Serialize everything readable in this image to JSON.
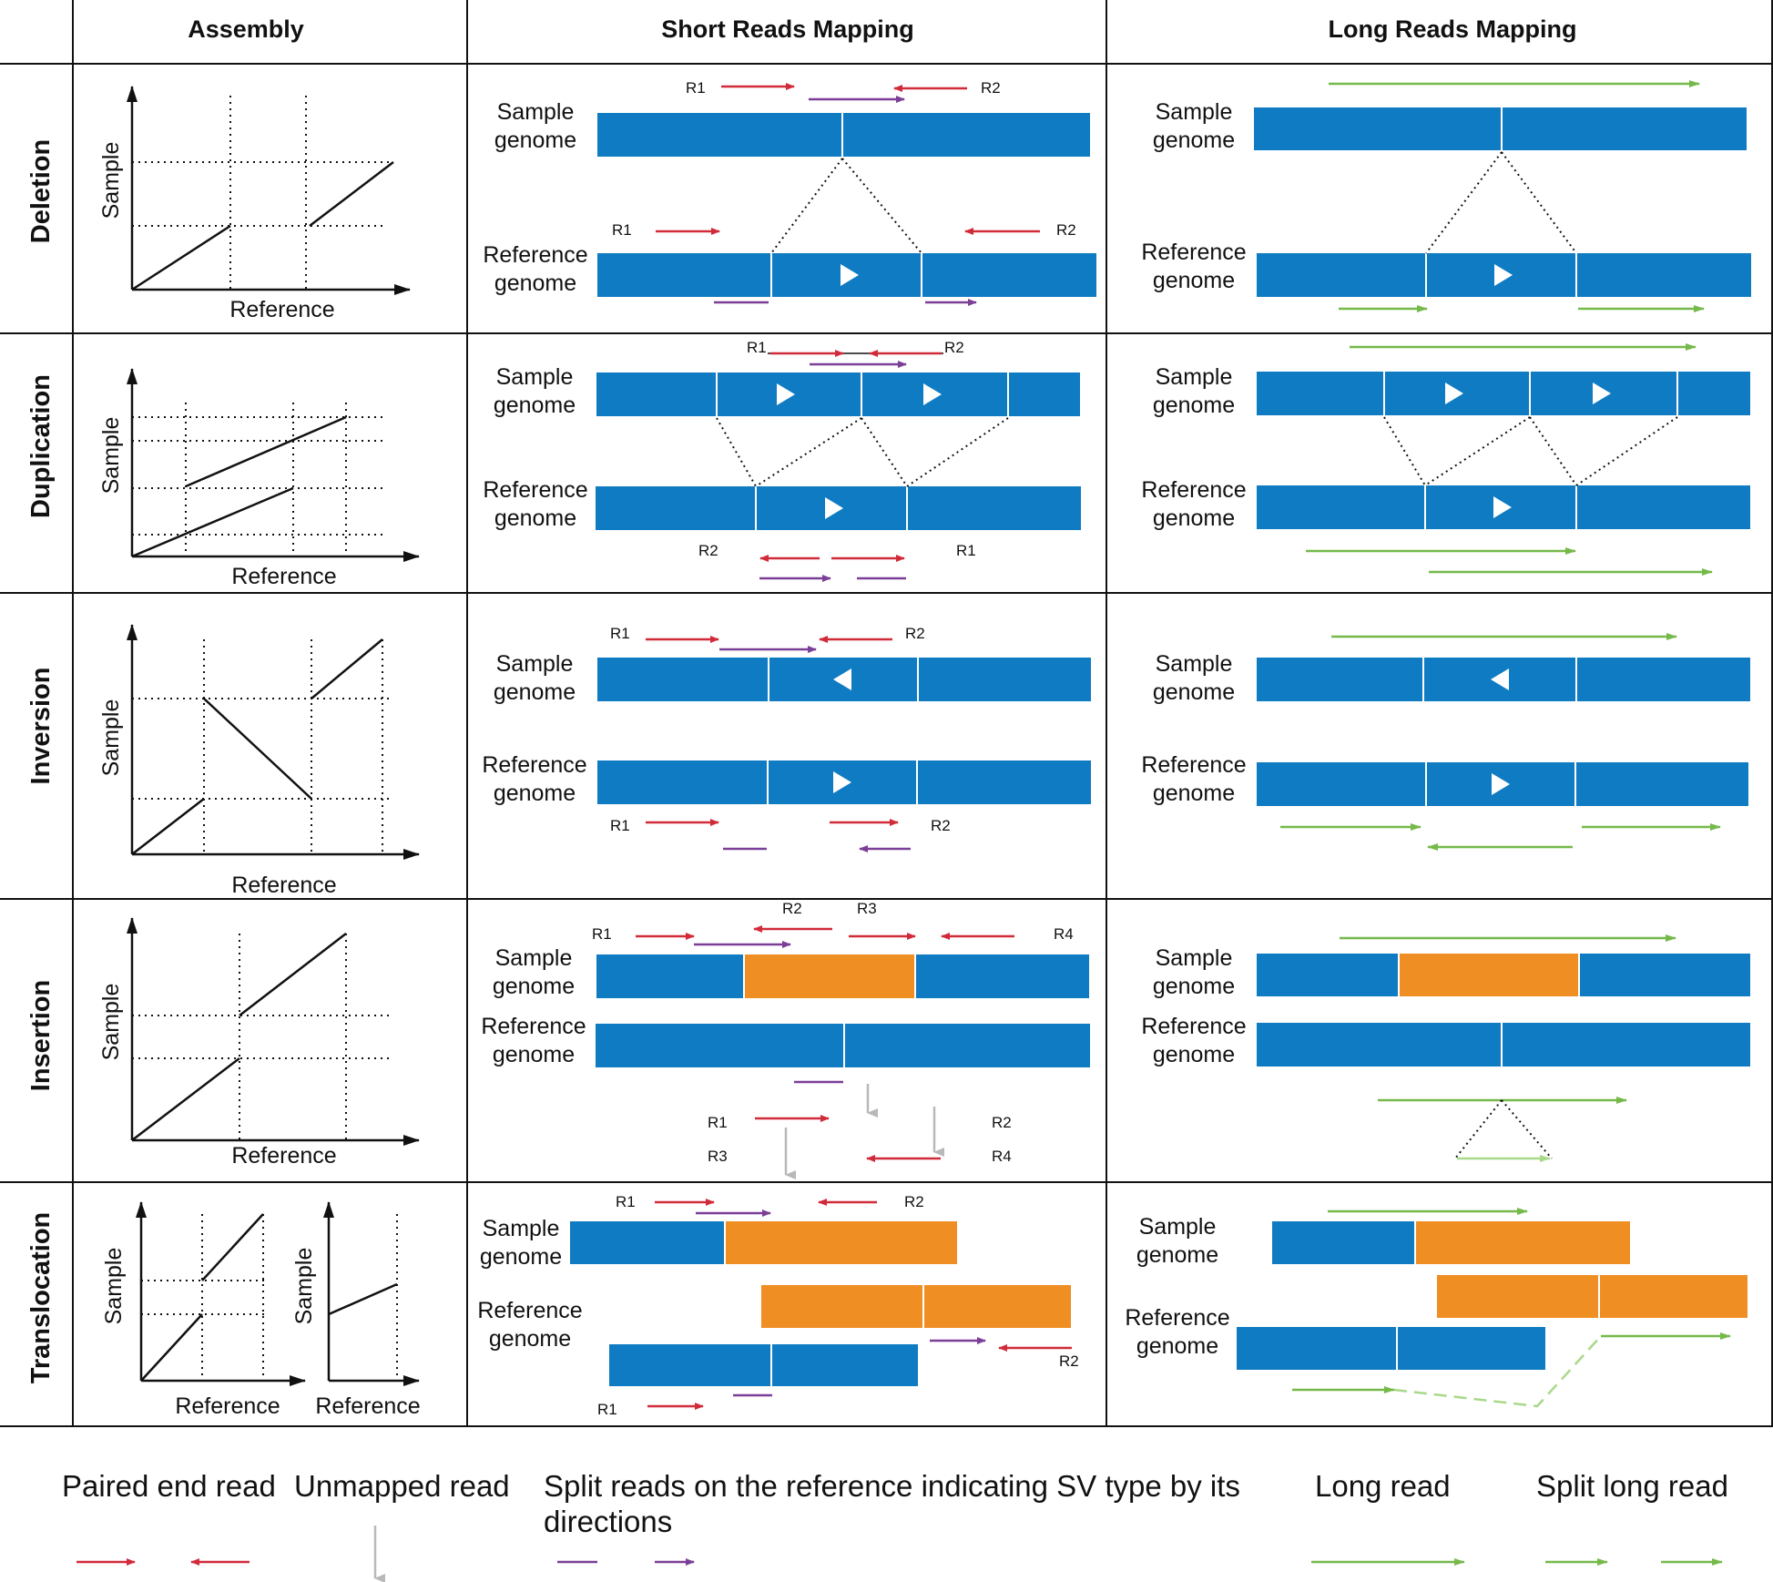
{
  "colors": {
    "genome_blue": "#0f7bc2",
    "inserted_orange": "#ef8e22",
    "paired_red": "#d12b3a",
    "split_purple": "#7b3f97",
    "long_green": "#76b94b",
    "unmapped_gray": "#b8b8b8"
  },
  "headers": {
    "assembly": "Assembly",
    "short": "Short Reads Mapping",
    "long": "Long Reads Mapping"
  },
  "rows": [
    "Deletion",
    "Duplication",
    "Inversion",
    "Insertion",
    "Translocation"
  ],
  "labels": {
    "sample_genome": [
      "Sample",
      "genome"
    ],
    "reference_genome": [
      "Reference",
      "genome"
    ],
    "axis_sample": "Sample",
    "axis_reference": "Reference",
    "r1": "R1",
    "r2": "R2",
    "r3": "R3",
    "r4": "R4"
  },
  "legend": {
    "paired": "Paired end read",
    "unmapped": "Unmapped read",
    "split_line1": "Split reads on the reference indicating SV type by its",
    "split_line2": "directions",
    "long": "Long read",
    "split_long": "Split long read"
  }
}
